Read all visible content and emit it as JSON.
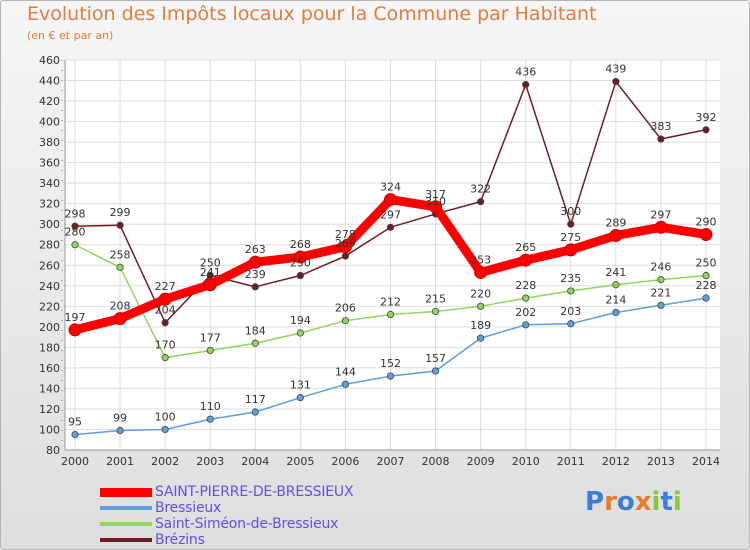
{
  "title": "Evolution des Impôts locaux pour la Commune par Habitant",
  "subtitle": "(en € et par an)",
  "logo": {
    "text": "Proxiti",
    "colors": [
      "#3a7fd5",
      "#e77b29",
      "#3a7fd5",
      "#e77b29",
      "#8cc63f",
      "#3a7fd5",
      "#8cc63f"
    ]
  },
  "chart_data": {
    "type": "line",
    "categories": [
      "2000",
      "2001",
      "2002",
      "2003",
      "2004",
      "2005",
      "2006",
      "2007",
      "2008",
      "2009",
      "2010",
      "2011",
      "2012",
      "2013",
      "2014"
    ],
    "ylim": [
      80,
      460
    ],
    "yticks": [
      80,
      100,
      120,
      140,
      160,
      180,
      200,
      220,
      240,
      260,
      280,
      300,
      320,
      340,
      360,
      380,
      400,
      420,
      440,
      460
    ],
    "grid": true,
    "legend_position": "bottom-left",
    "series": [
      {
        "name": "SAINT-PIERRE-DE-BRESSIEUX",
        "color": "#ff0000",
        "values": [
          197,
          208,
          227,
          241,
          263,
          268,
          278,
          324,
          317,
          253,
          265,
          275,
          289,
          297,
          290
        ]
      },
      {
        "name": "Bressieux",
        "color": "#5f9fd6",
        "values": [
          95,
          99,
          100,
          110,
          117,
          131,
          144,
          152,
          157,
          189,
          202,
          203,
          214,
          221,
          228
        ]
      },
      {
        "name": "Saint-Siméon-de-Bressieux",
        "color": "#8fd65a",
        "values": [
          280,
          258,
          170,
          177,
          184,
          194,
          206,
          212,
          215,
          220,
          228,
          235,
          241,
          246,
          250
        ]
      },
      {
        "name": "Brézins",
        "color": "#6b1f24",
        "values": [
          298,
          299,
          204,
          250,
          239,
          250,
          269,
          297,
          310,
          322,
          436,
          300,
          439,
          383,
          392
        ]
      }
    ]
  }
}
